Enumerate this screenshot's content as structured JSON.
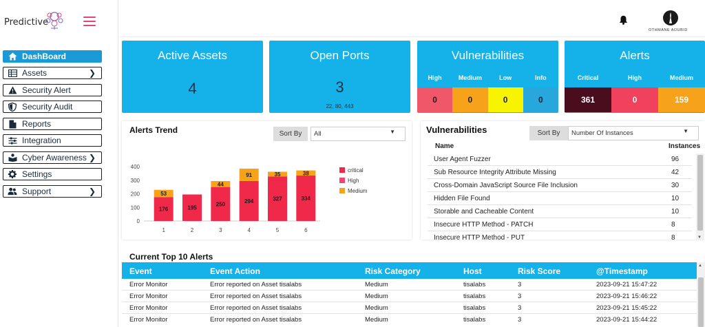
{
  "brand": {
    "name": "Predictive"
  },
  "header": {
    "user_name": "OTHMANE AOUBID"
  },
  "sidebar": {
    "items": [
      {
        "label": "DashBoard",
        "icon": "home-icon",
        "active": true,
        "chevron": false
      },
      {
        "label": "Assets",
        "icon": "table-icon",
        "active": false,
        "chevron": true
      },
      {
        "label": "Security Alert",
        "icon": "warning-icon",
        "active": false,
        "chevron": false
      },
      {
        "label": "Security Audit",
        "icon": "shield-icon",
        "active": false,
        "chevron": false
      },
      {
        "label": "Reports",
        "icon": "file-icon",
        "active": false,
        "chevron": false
      },
      {
        "label": "Integration",
        "icon": "sliders-icon",
        "active": false,
        "chevron": false
      },
      {
        "label": "Cyber Awareness",
        "icon": "book-reader-icon",
        "active": false,
        "chevron": true
      },
      {
        "label": "Settings",
        "icon": "gear-icon",
        "active": false,
        "chevron": false
      },
      {
        "label": "Support",
        "icon": "users-icon",
        "active": false,
        "chevron": true
      }
    ]
  },
  "cards": {
    "active_assets": {
      "title": "Active Assets",
      "value": "4"
    },
    "open_ports": {
      "title": "Open Ports",
      "value": "3",
      "sub": "22, 80, 443"
    },
    "vulnerabilities": {
      "title": "Vulnerabilities",
      "levels": [
        {
          "label": "High",
          "value": "0",
          "color": "#f0586a"
        },
        {
          "label": "Medium",
          "value": "0",
          "color": "#f7a21b"
        },
        {
          "label": "Low",
          "value": "0",
          "color": "#f8f400"
        },
        {
          "label": "Info",
          "value": "0",
          "color": "#27a7dc"
        }
      ]
    },
    "alerts": {
      "title": "Alerts",
      "levels": [
        {
          "label": "Critical",
          "value": "361",
          "color": "#4a0d1e",
          "text_color": "#ffffff"
        },
        {
          "label": "High",
          "value": "0",
          "color": "#f0415d",
          "text_color": "#ffffff"
        },
        {
          "label": "Medium",
          "value": "159",
          "color": "#f7a21b",
          "text_color": "#ffffff"
        }
      ]
    }
  },
  "alerts_trend": {
    "title": "Alerts Trend",
    "sort_label": "Sort By",
    "sort_value": "All"
  },
  "chart_data": {
    "type": "bar",
    "stacked": true,
    "categories": [
      "1",
      "2",
      "3",
      "4",
      "5",
      "6"
    ],
    "series": [
      {
        "name": "critical",
        "color": "#f0284a",
        "values": [
          176,
          195,
          250,
          294,
          327,
          334
        ]
      },
      {
        "name": "High",
        "color": "#f5456e",
        "values": [
          0,
          0,
          0,
          0,
          0,
          0
        ]
      },
      {
        "name": "Medium",
        "color": "#f7a21b",
        "values": [
          53,
          0,
          44,
          91,
          35,
          38
        ]
      }
    ],
    "ylim": [
      0,
      400
    ],
    "yticks": [
      0,
      100,
      200,
      300,
      400
    ],
    "legend": "right",
    "grid": false
  },
  "vuln_panel": {
    "title": "Vulnerabilities",
    "sort_label": "Sort By",
    "sort_value": "Number Of Instances",
    "col_name": "Name",
    "col_count": "Instances",
    "rows": [
      {
        "name": "User Agent Fuzzer",
        "count": "96"
      },
      {
        "name": "Sub Resource Integrity Attribute Missing",
        "count": "42"
      },
      {
        "name": "Cross-Domain JavaScript Source File Inclusion",
        "count": "30"
      },
      {
        "name": "Hidden File Found",
        "count": "10"
      },
      {
        "name": "Storable and Cacheable Content",
        "count": "10"
      },
      {
        "name": "Insecure HTTP Method - PATCH",
        "count": "8"
      },
      {
        "name": "Insecure HTTP Method - PUT",
        "count": "8"
      }
    ]
  },
  "top_alerts": {
    "title": "Current Top 10 Alerts",
    "columns": [
      "Event",
      "Event Action",
      "Risk Category",
      "Host",
      "Risk Score",
      "@Timestamp"
    ],
    "rows": [
      [
        "Error Monitor",
        "Error reported on Asset tisalabs",
        "Medium",
        "tisalabs",
        "3",
        "2023-09-21 15:47:22"
      ],
      [
        "Error Monitor",
        "Error reported on Asset tisalabs",
        "Medium",
        "tisalabs",
        "3",
        "2023-09-21 15:46:22"
      ],
      [
        "Error Monitor",
        "Error reported on Asset tisalabs",
        "Medium",
        "tisalabs",
        "3",
        "2023-09-21 15:45:22"
      ],
      [
        "Error Monitor",
        "Error reported on Asset tisalabs",
        "Medium",
        "tisalabs",
        "3",
        "2023-09-21 15:44:22"
      ]
    ]
  }
}
